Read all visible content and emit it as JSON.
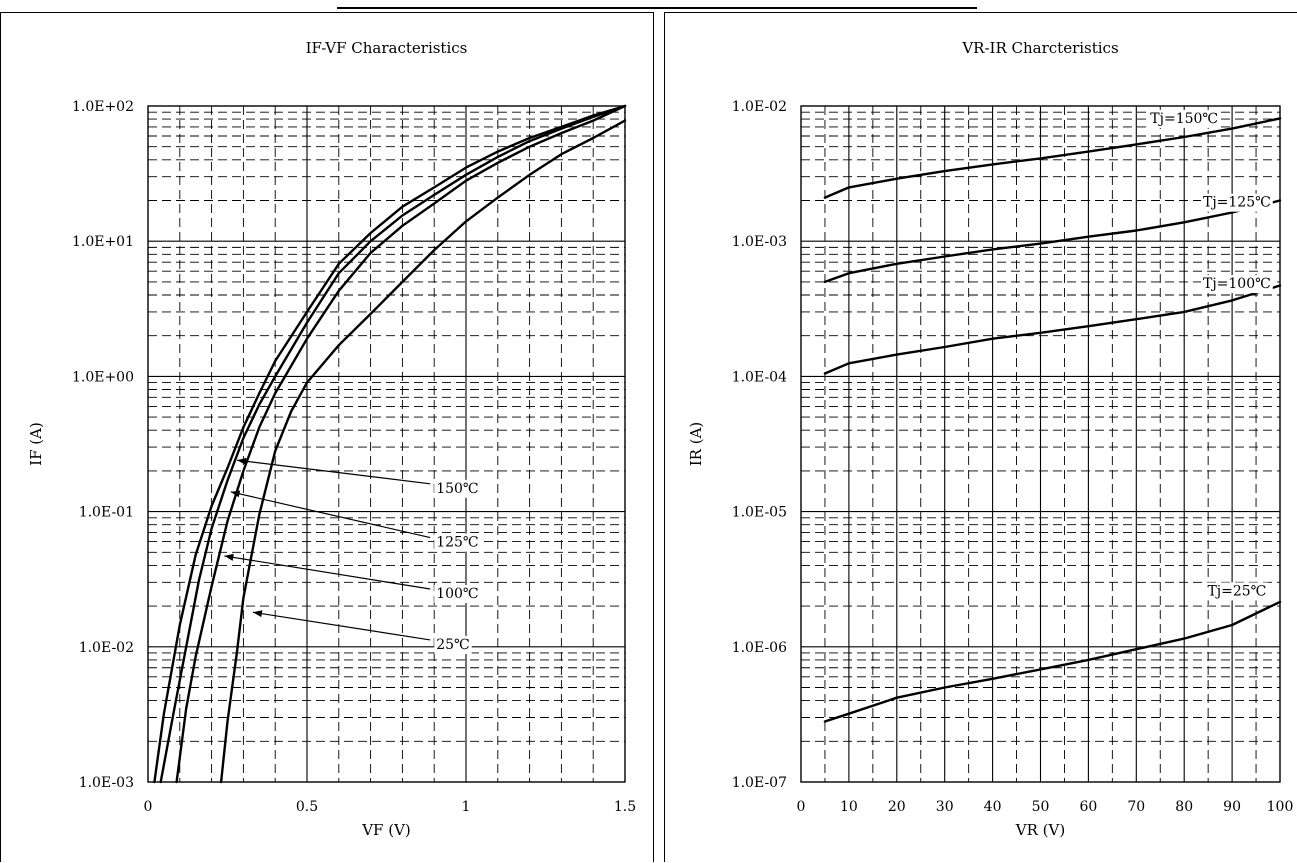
{
  "chart_data": [
    {
      "type": "line",
      "title": "IF-VF Characteristics",
      "xlabel": "VF (V)",
      "ylabel": "IF (A)",
      "xlim": [
        0,
        1.5
      ],
      "ylim": [
        0.001,
        100
      ],
      "yscale": "log",
      "grid": true,
      "x_ticks": [
        {
          "value": 0,
          "label": "0"
        },
        {
          "value": 0.5,
          "label": "0.5"
        },
        {
          "value": 1,
          "label": "1"
        },
        {
          "value": 1.5,
          "label": "1.5"
        }
      ],
      "y_ticks": [
        {
          "value": 100,
          "label": "1.0E+02"
        },
        {
          "value": 10,
          "label": "1.0E+01"
        },
        {
          "value": 1,
          "label": "1.0E+00"
        },
        {
          "value": 0.1,
          "label": "1.0E-01"
        },
        {
          "value": 0.01,
          "label": "1.0E-02"
        },
        {
          "value": 0.001,
          "label": "1.0E-03"
        }
      ],
      "series": [
        {
          "name": "150℃",
          "x": [
            0.02,
            0.05,
            0.1,
            0.15,
            0.2,
            0.25,
            0.3,
            0.35,
            0.4,
            0.5,
            0.6,
            0.7,
            0.8,
            0.9,
            1.0,
            1.1,
            1.2,
            1.3,
            1.4,
            1.5
          ],
          "y": [
            0.001,
            0.0032,
            0.0145,
            0.048,
            0.11,
            0.21,
            0.42,
            0.75,
            1.3,
            3.0,
            6.8,
            11.5,
            18,
            25,
            35,
            46,
            58,
            70,
            85,
            100
          ]
        },
        {
          "name": "125℃",
          "x": [
            0.04,
            0.08,
            0.12,
            0.16,
            0.2,
            0.25,
            0.3,
            0.35,
            0.4,
            0.5,
            0.6,
            0.7,
            0.8,
            0.9,
            1.0,
            1.1,
            1.2,
            1.3,
            1.4,
            1.5
          ],
          "y": [
            0.001,
            0.0032,
            0.01,
            0.031,
            0.075,
            0.17,
            0.35,
            0.62,
            1.0,
            2.5,
            5.8,
            10,
            15.5,
            22,
            31,
            42,
            55,
            68,
            83,
            100
          ]
        },
        {
          "name": "100℃",
          "x": [
            0.09,
            0.12,
            0.15,
            0.2,
            0.25,
            0.3,
            0.35,
            0.4,
            0.5,
            0.6,
            0.7,
            0.8,
            0.9,
            1.0,
            1.1,
            1.2,
            1.3,
            1.4,
            1.5
          ],
          "y": [
            0.001,
            0.0035,
            0.0085,
            0.028,
            0.085,
            0.2,
            0.42,
            0.75,
            1.9,
            4.3,
            8.2,
            13,
            19,
            28,
            38,
            50,
            63,
            78,
            100
          ]
        },
        {
          "name": "25℃",
          "x": [
            0.23,
            0.25,
            0.28,
            0.3,
            0.35,
            0.4,
            0.45,
            0.5,
            0.6,
            0.7,
            0.8,
            0.9,
            1.0,
            1.1,
            1.2,
            1.3,
            1.4,
            1.5
          ],
          "y": [
            0.001,
            0.0028,
            0.0092,
            0.023,
            0.095,
            0.28,
            0.55,
            0.9,
            1.7,
            2.9,
            5.0,
            8.6,
            14,
            21,
            31,
            44,
            58,
            78
          ]
        }
      ],
      "annotations": [
        {
          "text": "150℃",
          "label_at": [
            0.9,
            0.15
          ],
          "arrow_to": [
            0.28,
            0.24
          ]
        },
        {
          "text": "125℃",
          "label_at": [
            0.9,
            0.06
          ],
          "arrow_to": [
            0.26,
            0.14
          ]
        },
        {
          "text": "100℃",
          "label_at": [
            0.9,
            0.025
          ],
          "arrow_to": [
            0.24,
            0.047
          ]
        },
        {
          "text": "25℃",
          "label_at": [
            0.9,
            0.0105
          ],
          "arrow_to": [
            0.33,
            0.018
          ]
        }
      ]
    },
    {
      "type": "line",
      "title": "VR-IR Charcteristics",
      "xlabel": "VR (V)",
      "ylabel": "IR (A)",
      "xlim": [
        0,
        100
      ],
      "ylim": [
        1e-07,
        0.01
      ],
      "yscale": "log",
      "grid": true,
      "x_ticks": [
        {
          "value": 0,
          "label": "0"
        },
        {
          "value": 10,
          "label": "10"
        },
        {
          "value": 20,
          "label": "20"
        },
        {
          "value": 30,
          "label": "30"
        },
        {
          "value": 40,
          "label": "40"
        },
        {
          "value": 50,
          "label": "50"
        },
        {
          "value": 60,
          "label": "60"
        },
        {
          "value": 70,
          "label": "70"
        },
        {
          "value": 80,
          "label": "80"
        },
        {
          "value": 90,
          "label": "90"
        },
        {
          "value": 100,
          "label": "100"
        }
      ],
      "y_ticks": [
        {
          "value": 0.01,
          "label": "1.0E-02"
        },
        {
          "value": 0.001,
          "label": "1.0E-03"
        },
        {
          "value": 0.0001,
          "label": "1.0E-04"
        },
        {
          "value": 1e-05,
          "label": "1.0E-05"
        },
        {
          "value": 1e-06,
          "label": "1.0E-06"
        },
        {
          "value": 1e-07,
          "label": "1.0E-07"
        }
      ],
      "series": [
        {
          "name": "Tj=150℃",
          "x": [
            5,
            10,
            20,
            30,
            40,
            50,
            60,
            70,
            80,
            90,
            100
          ],
          "y": [
            0.0021,
            0.0025,
            0.0029,
            0.0033,
            0.0037,
            0.0041,
            0.0046,
            0.0052,
            0.0059,
            0.0068,
            0.0081
          ]
        },
        {
          "name": "Tj=125℃",
          "x": [
            5,
            10,
            20,
            30,
            40,
            50,
            60,
            70,
            80,
            90,
            100
          ],
          "y": [
            0.0005,
            0.00058,
            0.00068,
            0.00077,
            0.00087,
            0.00096,
            0.00108,
            0.0012,
            0.00138,
            0.00163,
            0.002
          ]
        },
        {
          "name": "Tj=100℃",
          "x": [
            5,
            10,
            20,
            30,
            40,
            50,
            60,
            70,
            80,
            90,
            100
          ],
          "y": [
            0.000105,
            0.000125,
            0.000145,
            0.000165,
            0.00019,
            0.00021,
            0.000235,
            0.000265,
            0.0003,
            0.000365,
            0.00047
          ]
        },
        {
          "name": "Tj=25℃",
          "x": [
            5,
            10,
            20,
            30,
            40,
            50,
            60,
            70,
            80,
            90,
            100
          ],
          "y": [
            2.8e-07,
            3.2e-07,
            4.2e-07,
            5e-07,
            5.8e-07,
            6.8e-07,
            8e-07,
            9.6e-07,
            1.15e-06,
            1.45e-06,
            2.15e-06
          ]
        }
      ],
      "annotations": [
        {
          "text": "Tj=150℃",
          "label_at": [
            80,
            0.0075
          ]
        },
        {
          "text": "Tj=125℃",
          "label_at": [
            91,
            0.0018
          ]
        },
        {
          "text": "Tj=100℃",
          "label_at": [
            91,
            0.00045
          ]
        },
        {
          "text": "Tj=25℃",
          "label_at": [
            91,
            2.4e-06
          ]
        }
      ]
    }
  ]
}
